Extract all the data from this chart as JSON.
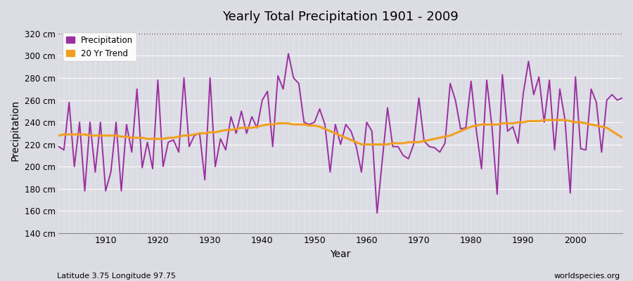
{
  "title": "Yearly Total Precipitation 1901 - 2009",
  "xlabel": "Year",
  "ylabel": "Precipitation",
  "subtitle_left": "Latitude 3.75 Longitude 97.75",
  "subtitle_right": "worldspecies.org",
  "ylim": [
    140,
    325
  ],
  "yticks": [
    140,
    160,
    180,
    200,
    220,
    240,
    260,
    280,
    300,
    320
  ],
  "ytick_labels": [
    "140 cm",
    "160 cm",
    "180 cm",
    "200 cm",
    "220 cm",
    "240 cm",
    "260 cm",
    "280 cm",
    "300 cm",
    "320 cm"
  ],
  "xlim": [
    1901,
    2009
  ],
  "xticks": [
    1910,
    1920,
    1930,
    1940,
    1950,
    1960,
    1970,
    1980,
    1990,
    2000
  ],
  "bg_color": "#dcdce4",
  "plot_bg_color": "#dcdce4",
  "precip_color": "#9b30a0",
  "trend_color": "#f0a020",
  "precip_linewidth": 1.4,
  "trend_linewidth": 2.2,
  "years": [
    1901,
    1902,
    1903,
    1904,
    1905,
    1906,
    1907,
    1908,
    1909,
    1910,
    1911,
    1912,
    1913,
    1914,
    1915,
    1916,
    1917,
    1918,
    1919,
    1920,
    1921,
    1922,
    1923,
    1924,
    1925,
    1926,
    1927,
    1928,
    1929,
    1930,
    1931,
    1932,
    1933,
    1934,
    1935,
    1936,
    1937,
    1938,
    1939,
    1940,
    1941,
    1942,
    1943,
    1944,
    1945,
    1946,
    1947,
    1948,
    1949,
    1950,
    1951,
    1952,
    1953,
    1954,
    1955,
    1956,
    1957,
    1958,
    1959,
    1960,
    1961,
    1962,
    1963,
    1964,
    1965,
    1966,
    1967,
    1968,
    1969,
    1970,
    1971,
    1972,
    1973,
    1974,
    1975,
    1976,
    1977,
    1978,
    1979,
    1980,
    1981,
    1982,
    1983,
    1984,
    1985,
    1986,
    1987,
    1988,
    1989,
    1990,
    1991,
    1992,
    1993,
    1994,
    1995,
    1996,
    1997,
    1998,
    1999,
    2000,
    2001,
    2002,
    2003,
    2004,
    2005,
    2006,
    2007,
    2008,
    2009
  ],
  "precip": [
    218,
    215,
    258,
    200,
    240,
    178,
    240,
    195,
    240,
    178,
    195,
    240,
    178,
    238,
    213,
    270,
    199,
    222,
    198,
    278,
    200,
    222,
    224,
    213,
    280,
    218,
    228,
    230,
    188,
    280,
    200,
    225,
    215,
    245,
    230,
    250,
    230,
    245,
    235,
    260,
    268,
    218,
    282,
    270,
    302,
    280,
    275,
    240,
    238,
    240,
    252,
    238,
    195,
    238,
    220,
    238,
    232,
    218,
    195,
    240,
    232,
    158,
    206,
    253,
    218,
    218,
    210,
    207,
    220,
    262,
    223,
    218,
    217,
    213,
    221,
    275,
    260,
    234,
    235,
    277,
    233,
    198,
    278,
    236,
    175,
    283,
    232,
    236,
    221,
    266,
    295,
    265,
    281,
    240,
    278,
    215,
    270,
    242,
    176,
    281,
    216,
    215,
    270,
    258,
    213,
    260,
    265,
    260,
    262
  ],
  "trend": [
    228,
    229,
    229,
    229,
    229,
    229,
    228,
    228,
    228,
    228,
    228,
    228,
    227,
    227,
    226,
    226,
    226,
    225,
    225,
    225,
    225,
    226,
    226,
    227,
    228,
    228,
    229,
    230,
    230,
    231,
    231,
    232,
    233,
    233,
    234,
    235,
    235,
    235,
    236,
    237,
    238,
    238,
    239,
    239,
    239,
    238,
    238,
    238,
    237,
    237,
    236,
    234,
    232,
    230,
    228,
    226,
    224,
    222,
    220,
    220,
    220,
    220,
    220,
    220,
    221,
    221,
    221,
    222,
    222,
    222,
    223,
    224,
    225,
    226,
    227,
    228,
    230,
    232,
    234,
    236,
    237,
    238,
    238,
    238,
    238,
    239,
    239,
    239,
    240,
    240,
    241,
    241,
    241,
    242,
    242,
    242,
    242,
    242,
    241,
    240,
    240,
    239,
    238,
    237,
    236,
    235,
    232,
    229,
    226
  ]
}
